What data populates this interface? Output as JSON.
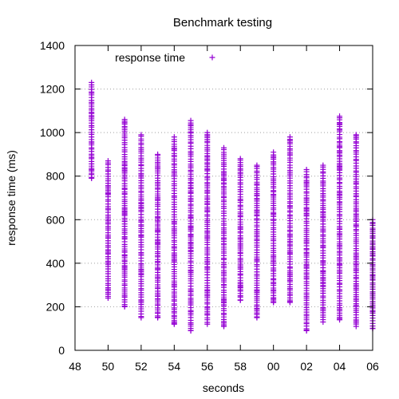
{
  "chart_data": {
    "type": "scatter",
    "title": "Benchmark testing",
    "xlabel": "seconds",
    "ylabel": "response time (ms)",
    "x_ticks": [
      "48",
      "50",
      "52",
      "54",
      "56",
      "58",
      "00",
      "02",
      "04",
      "06"
    ],
    "y_ticks": [
      "0",
      "200",
      "400",
      "600",
      "800",
      "1000",
      "1200",
      "1400"
    ],
    "xlim": [
      0,
      18
    ],
    "ylim": [
      0,
      1400
    ],
    "grid": "horizontal dotted",
    "legend_position": "top-left",
    "marker": "+",
    "series": [
      {
        "name": "response time",
        "color": "#9400d3",
        "points": [
          {
            "x": 1,
            "min": 790,
            "max": 1230
          },
          {
            "x": 2,
            "min": 240,
            "max": 870
          },
          {
            "x": 3,
            "min": 200,
            "max": 1060
          },
          {
            "x": 4,
            "min": 150,
            "max": 990
          },
          {
            "x": 5,
            "min": 150,
            "max": 900
          },
          {
            "x": 6,
            "min": 120,
            "max": 980
          },
          {
            "x": 7,
            "min": 90,
            "max": 1055
          },
          {
            "x": 8,
            "min": 120,
            "max": 1000
          },
          {
            "x": 9,
            "min": 110,
            "max": 930
          },
          {
            "x": 10,
            "min": 230,
            "max": 880
          },
          {
            "x": 11,
            "min": 150,
            "max": 850
          },
          {
            "x": 12,
            "min": 220,
            "max": 910
          },
          {
            "x": 13,
            "min": 220,
            "max": 980
          },
          {
            "x": 14,
            "min": 90,
            "max": 830
          },
          {
            "x": 15,
            "min": 130,
            "max": 850
          },
          {
            "x": 16,
            "min": 140,
            "max": 1075
          },
          {
            "x": 17,
            "min": 110,
            "max": 990
          },
          {
            "x": 18,
            "min": 100,
            "max": 600
          }
        ]
      }
    ]
  }
}
